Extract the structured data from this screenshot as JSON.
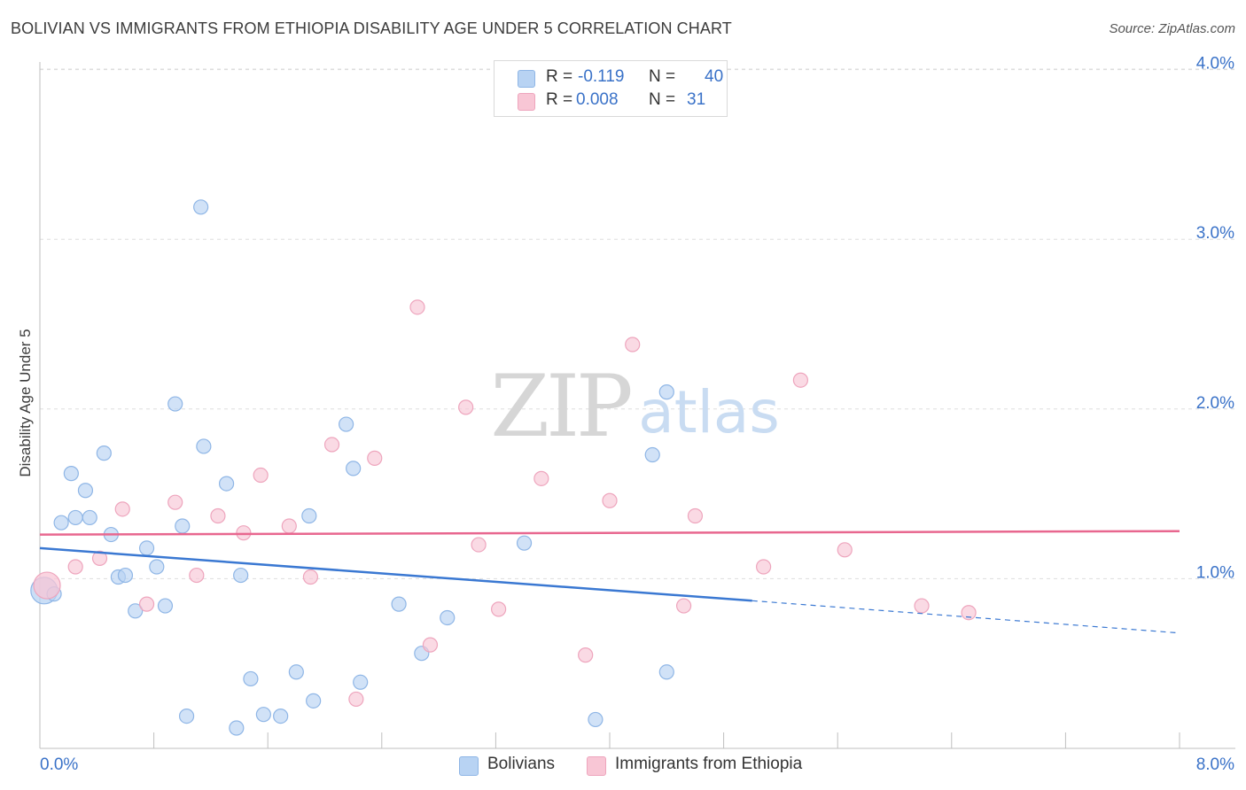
{
  "title": "BOLIVIAN VS IMMIGRANTS FROM ETHIOPIA DISABILITY AGE UNDER 5 CORRELATION CHART",
  "source": "Source: ZipAtlas.com",
  "watermark": {
    "zip": "ZIP",
    "atlas": "atlas"
  },
  "stats": [
    {
      "r_label": "R =",
      "r_value": "-0.119",
      "n_label": "N =",
      "n_value": "40"
    },
    {
      "r_label": "R =",
      "r_value": "0.008",
      "n_label": "N =",
      "n_value": "31"
    }
  ],
  "legend": [
    "Bolivians",
    "Immigrants from Ethiopia"
  ],
  "colors": {
    "blue_fill": "#b8d3f3",
    "blue_stroke": "#8fb6e6",
    "blue_line": "#3a78d2",
    "pink_fill": "#f8c6d5",
    "pink_stroke": "#eea5bd",
    "pink_line": "#e8678f",
    "tick_text": "#3a72c8",
    "grid": "#dddddd",
    "axis": "#bfbfbf"
  },
  "chart_data": {
    "type": "scatter",
    "title": "BOLIVIAN VS IMMIGRANTS FROM ETHIOPIA DISABILITY AGE UNDER 5 CORRELATION CHART",
    "xlabel": "",
    "ylabel": "Disability Age Under 5",
    "xlim": [
      0,
      8
    ],
    "ylim": [
      0,
      4.1
    ],
    "x_tick_labels": [
      "0.0%",
      "8.0%"
    ],
    "y_ticks": [
      1.0,
      2.0,
      3.0,
      4.0
    ],
    "y_tick_labels": [
      "1.0%",
      "2.0%",
      "3.0%",
      "4.0%"
    ],
    "grid": true,
    "legend_position": "bottom",
    "series": [
      {
        "name": "Bolivians",
        "color": "#b8d3f3",
        "points": [
          [
            0.03,
            0.93
          ],
          [
            0.1,
            0.91
          ],
          [
            0.15,
            1.33
          ],
          [
            0.22,
            1.62
          ],
          [
            0.25,
            1.36
          ],
          [
            0.32,
            1.52
          ],
          [
            0.35,
            1.36
          ],
          [
            0.45,
            1.74
          ],
          [
            0.5,
            1.26
          ],
          [
            0.55,
            1.01
          ],
          [
            0.6,
            1.02
          ],
          [
            0.67,
            0.81
          ],
          [
            0.75,
            1.18
          ],
          [
            0.82,
            1.07
          ],
          [
            0.88,
            0.84
          ],
          [
            0.95,
            2.03
          ],
          [
            1.0,
            1.31
          ],
          [
            1.03,
            0.19
          ],
          [
            1.13,
            3.19
          ],
          [
            1.15,
            1.78
          ],
          [
            1.31,
            1.56
          ],
          [
            1.38,
            0.12
          ],
          [
            1.41,
            1.02
          ],
          [
            1.48,
            0.41
          ],
          [
            1.57,
            0.2
          ],
          [
            1.69,
            0.19
          ],
          [
            1.8,
            0.45
          ],
          [
            1.89,
            1.37
          ],
          [
            1.92,
            0.28
          ],
          [
            2.15,
            1.91
          ],
          [
            2.2,
            1.65
          ],
          [
            2.25,
            0.39
          ],
          [
            2.52,
            0.85
          ],
          [
            2.68,
            0.56
          ],
          [
            2.86,
            0.77
          ],
          [
            3.4,
            1.21
          ],
          [
            3.9,
            0.17
          ],
          [
            4.3,
            1.73
          ],
          [
            4.4,
            2.1
          ],
          [
            4.4,
            0.45
          ]
        ]
      },
      {
        "name": "Immigrants from Ethiopia",
        "color": "#f8c6d5",
        "points": [
          [
            0.05,
            0.96
          ],
          [
            0.25,
            1.07
          ],
          [
            0.42,
            1.12
          ],
          [
            0.58,
            1.41
          ],
          [
            0.75,
            0.85
          ],
          [
            0.95,
            1.45
          ],
          [
            1.1,
            1.02
          ],
          [
            1.25,
            1.37
          ],
          [
            1.43,
            1.27
          ],
          [
            1.55,
            1.61
          ],
          [
            1.75,
            1.31
          ],
          [
            1.9,
            1.01
          ],
          [
            2.05,
            1.79
          ],
          [
            2.22,
            0.29
          ],
          [
            2.35,
            1.71
          ],
          [
            2.65,
            2.6
          ],
          [
            2.74,
            0.61
          ],
          [
            2.99,
            2.01
          ],
          [
            3.08,
            1.2
          ],
          [
            3.22,
            0.82
          ],
          [
            3.52,
            1.59
          ],
          [
            3.83,
            0.55
          ],
          [
            4.0,
            1.46
          ],
          [
            4.16,
            2.38
          ],
          [
            4.52,
            0.84
          ],
          [
            4.6,
            1.37
          ],
          [
            5.08,
            1.07
          ],
          [
            5.34,
            2.17
          ],
          [
            5.65,
            1.17
          ],
          [
            6.19,
            0.84
          ],
          [
            6.52,
            0.8
          ]
        ]
      }
    ],
    "trend_lines": [
      {
        "series": "Bolivians",
        "x": [
          0,
          5.0
        ],
        "y": [
          1.18,
          0.87
        ],
        "dashed_extension_to_x": 8.0,
        "dashed_end_y": 0.68
      },
      {
        "series": "Immigrants from Ethiopia",
        "x": [
          0,
          8.0
        ],
        "y": [
          1.26,
          1.28
        ]
      }
    ]
  }
}
